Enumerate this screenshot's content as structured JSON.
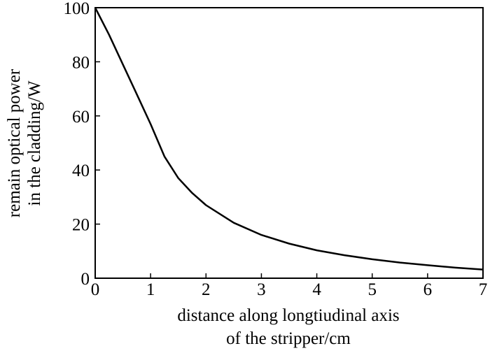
{
  "chart_data": {
    "type": "line",
    "title": "",
    "xlabel": [
      "distance along longtiudinal axis",
      "of the stripper/cm"
    ],
    "ylabel": [
      "remain optical power",
      "in the cladding/W"
    ],
    "xlim": [
      0,
      7
    ],
    "ylim": [
      0,
      100
    ],
    "xticks": [
      "0",
      "1",
      "2",
      "3",
      "4",
      "5",
      "6",
      "7"
    ],
    "yticks": [
      "0",
      "20",
      "40",
      "60",
      "80",
      "100"
    ],
    "grid": false,
    "line_color": "#000000",
    "series": [
      {
        "x": [
          0,
          0.25,
          0.5,
          0.75,
          1.0,
          1.25,
          1.5,
          1.75,
          2.0,
          2.5,
          3.0,
          3.5,
          4.0,
          4.5,
          5.0,
          5.5,
          6.0,
          6.5,
          7.0
        ],
        "values": [
          100,
          90,
          79,
          68,
          57,
          45,
          37,
          31.5,
          27,
          20.5,
          16,
          12.8,
          10.3,
          8.5,
          7,
          5.8,
          4.8,
          3.9,
          3.2
        ]
      }
    ]
  }
}
